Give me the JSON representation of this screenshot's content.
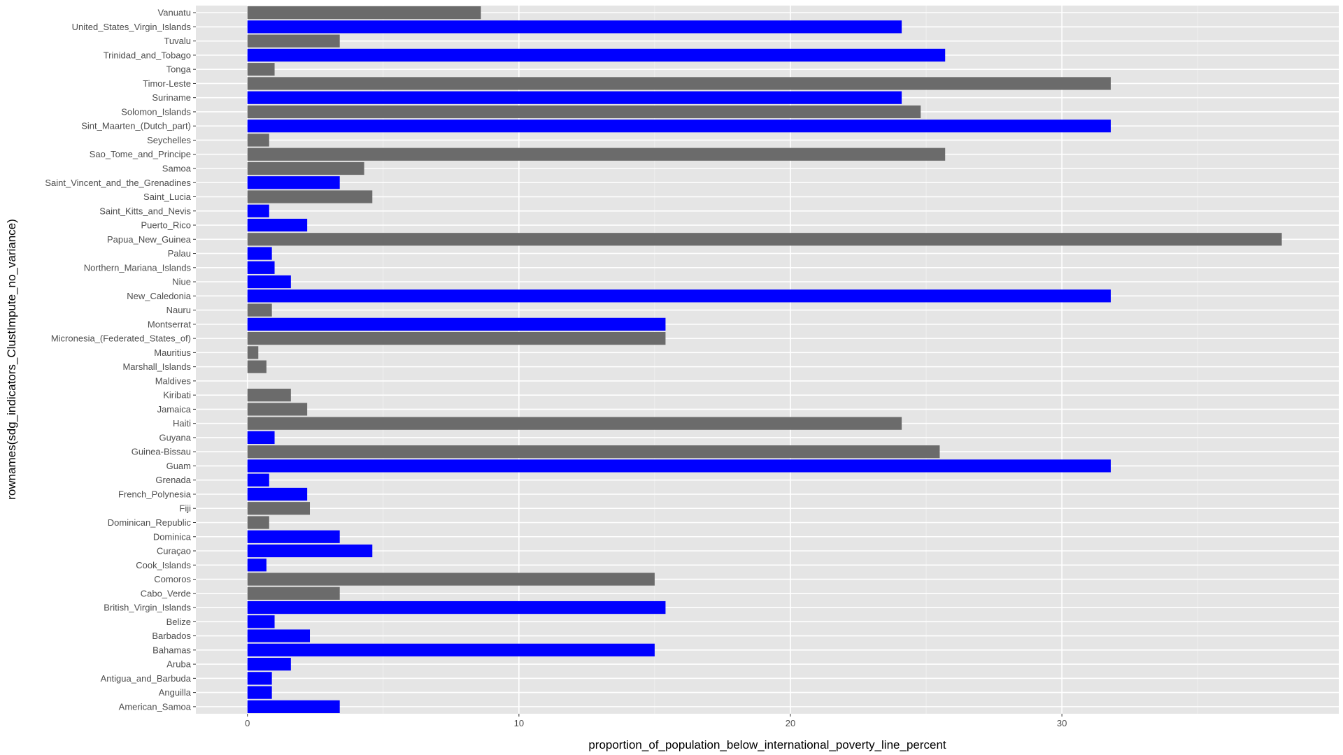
{
  "chart_data": {
    "type": "bar",
    "orientation": "horizontal",
    "xlabel": "proportion_of_population_below_international_poverty_line_percent",
    "ylabel": "rownames(sdg_indicators_ClustImpute_no_variance)",
    "xlim": [
      -1.9,
      40.2
    ],
    "x_ticks": [
      0,
      10,
      20,
      30
    ],
    "grid": true,
    "panel_background": "#e5e5e5",
    "colors": {
      "blue": "#0000ff",
      "gray": "#6b6b6b"
    },
    "categories": [
      "Vanuatu",
      "United_States_Virgin_Islands",
      "Tuvalu",
      "Trinidad_and_Tobago",
      "Tonga",
      "Timor-Leste",
      "Suriname",
      "Solomon_Islands",
      "Sint_Maarten_(Dutch_part)",
      "Seychelles",
      "Sao_Tome_and_Principe",
      "Samoa",
      "Saint_Vincent_and_the_Grenadines",
      "Saint_Lucia",
      "Saint_Kitts_and_Nevis",
      "Puerto_Rico",
      "Papua_New_Guinea",
      "Palau",
      "Northern_Mariana_Islands",
      "Niue",
      "New_Caledonia",
      "Nauru",
      "Montserrat",
      "Micronesia_(Federated_States_of)",
      "Mauritius",
      "Marshall_Islands",
      "Maldives",
      "Kiribati",
      "Jamaica",
      "Haiti",
      "Guyana",
      "Guinea-Bissau",
      "Guam",
      "Grenada",
      "French_Polynesia",
      "Fiji",
      "Dominican_Republic",
      "Dominica",
      "Curaçao",
      "Cook_Islands",
      "Comoros",
      "Cabo_Verde",
      "British_Virgin_Islands",
      "Belize",
      "Barbados",
      "Bahamas",
      "Aruba",
      "Antigua_and_Barbuda",
      "Anguilla",
      "American_Samoa"
    ],
    "values": [
      8.6,
      24.1,
      3.4,
      25.7,
      1.0,
      31.8,
      24.1,
      24.8,
      31.8,
      0.8,
      25.7,
      4.3,
      3.4,
      4.6,
      0.8,
      2.2,
      38.1,
      0.9,
      1.0,
      1.6,
      31.8,
      0.9,
      15.4,
      15.4,
      0.4,
      0.7,
      0.0,
      1.6,
      2.2,
      24.1,
      1.0,
      25.5,
      31.8,
      0.8,
      2.2,
      2.3,
      0.8,
      3.4,
      4.6,
      0.7,
      15.0,
      3.4,
      15.4,
      1.0,
      2.3,
      15.0,
      1.6,
      0.9,
      0.9,
      3.4
    ],
    "bar_colors": [
      "gray",
      "blue",
      "gray",
      "blue",
      "gray",
      "gray",
      "blue",
      "gray",
      "blue",
      "gray",
      "gray",
      "gray",
      "blue",
      "gray",
      "blue",
      "blue",
      "gray",
      "blue",
      "blue",
      "blue",
      "blue",
      "gray",
      "blue",
      "gray",
      "gray",
      "gray",
      "gray",
      "gray",
      "gray",
      "gray",
      "blue",
      "gray",
      "blue",
      "blue",
      "blue",
      "gray",
      "gray",
      "blue",
      "blue",
      "blue",
      "gray",
      "gray",
      "blue",
      "blue",
      "blue",
      "blue",
      "blue",
      "blue",
      "blue",
      "blue"
    ]
  }
}
